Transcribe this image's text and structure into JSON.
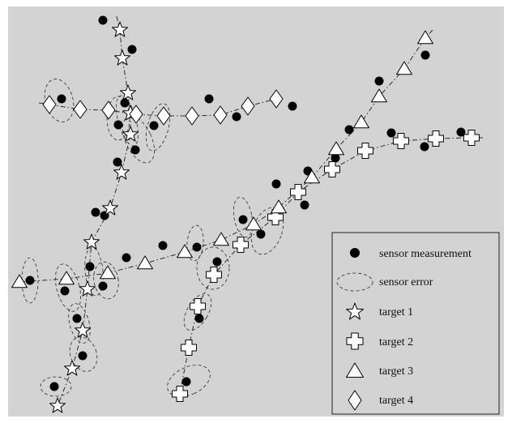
{
  "colors": {
    "background": "#d3d3d3",
    "frame": "#ffffff",
    "line": "#2b2b2b",
    "marker_fill": "#ffffff",
    "measurement": "#000000"
  },
  "legend": {
    "items": [
      {
        "key": "measurement",
        "label": "sensor measurement",
        "icon": "filled-circle"
      },
      {
        "key": "error",
        "label": "sensor error",
        "icon": "dashed-ellipse"
      },
      {
        "key": "target1",
        "label": "target 1",
        "icon": "star"
      },
      {
        "key": "target2",
        "label": "target 2",
        "icon": "plus-cross"
      },
      {
        "key": "target3",
        "label": "target 3",
        "icon": "triangle"
      },
      {
        "key": "target4",
        "label": "target 4",
        "icon": "diamond"
      }
    ]
  }
}
